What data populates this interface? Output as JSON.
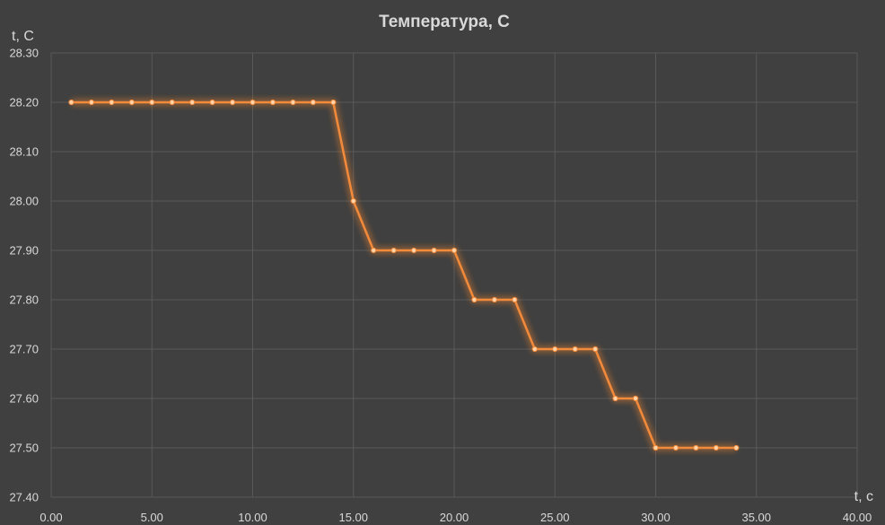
{
  "colors": {
    "background": "#404040",
    "grid": "#595959",
    "text": "#d9d9d9",
    "series": "#f28a3c",
    "series_glow": "#ff8a2a",
    "marker_fill": "#ffd3a8"
  },
  "chart_data": {
    "type": "scatter",
    "title": "Температура, С",
    "xlabel": "t, c",
    "ylabel": "t, C",
    "xlim": [
      0,
      40
    ],
    "ylim": [
      27.4,
      28.3
    ],
    "x_ticks": [
      0,
      5,
      10,
      15,
      20,
      25,
      30,
      35,
      40
    ],
    "x_tick_labels": [
      "0.00",
      "5.00",
      "10.00",
      "15.00",
      "20.00",
      "25.00",
      "30.00",
      "35.00",
      "40.00"
    ],
    "y_ticks": [
      27.4,
      27.5,
      27.6,
      27.7,
      27.8,
      27.9,
      28.0,
      28.1,
      28.2,
      28.3
    ],
    "y_tick_labels": [
      "27.40",
      "27.50",
      "27.60",
      "27.70",
      "27.80",
      "27.90",
      "28.00",
      "28.10",
      "28.20",
      "28.30"
    ],
    "grid": true,
    "legend": "none",
    "series": [
      {
        "x": [
          1,
          2,
          3,
          4,
          5,
          6,
          7,
          8,
          9,
          10,
          11,
          12,
          13,
          14,
          15,
          16,
          17,
          18,
          19,
          20,
          21,
          22,
          23,
          24,
          25,
          26,
          27,
          28,
          29,
          30,
          31,
          32,
          33,
          34
        ],
        "y": [
          28.2,
          28.2,
          28.2,
          28.2,
          28.2,
          28.2,
          28.2,
          28.2,
          28.2,
          28.2,
          28.2,
          28.2,
          28.2,
          28.2,
          28.0,
          27.9,
          27.9,
          27.9,
          27.9,
          27.9,
          27.8,
          27.8,
          27.8,
          27.7,
          27.7,
          27.7,
          27.7,
          27.6,
          27.6,
          27.5,
          27.5,
          27.5,
          27.5,
          27.5
        ]
      }
    ]
  }
}
